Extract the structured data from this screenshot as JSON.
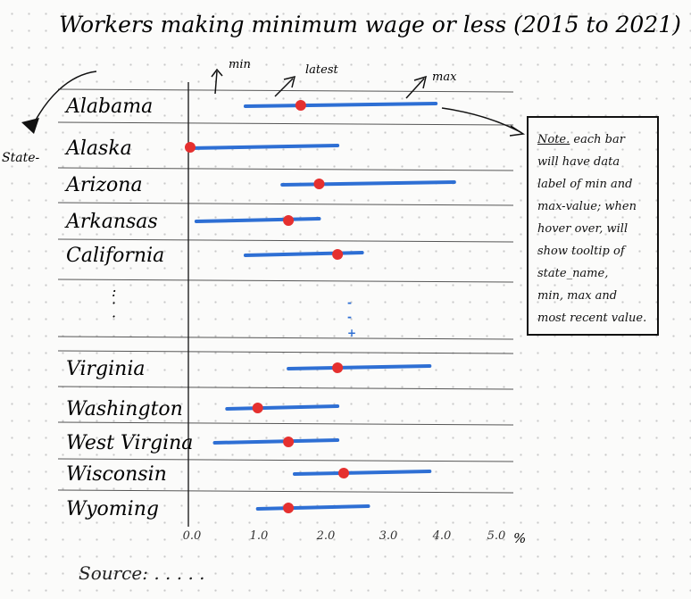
{
  "chart_data": {
    "type": "dumbbell-range",
    "title": "Workers making minimum wage or less (2015 to 2021)",
    "ylabel": "State-",
    "states": [
      {
        "name": "Alabama",
        "min": 0.9,
        "latest": 1.8,
        "max": 4.0
      },
      {
        "name": "Alaska",
        "min": 0.0,
        "latest": 0.0,
        "max": 2.4
      },
      {
        "name": "Arizona",
        "min": 1.5,
        "latest": 2.1,
        "max": 4.3
      },
      {
        "name": "Arkansas",
        "min": 0.1,
        "latest": 1.6,
        "max": 2.1
      },
      {
        "name": "California",
        "min": 0.9,
        "latest": 2.4,
        "max": 2.8
      },
      {
        "name": "Virginia",
        "min": 1.6,
        "latest": 2.4,
        "max": 3.9
      },
      {
        "name": "Washington",
        "min": 0.6,
        "latest": 1.1,
        "max": 2.4
      },
      {
        "name": "West Virgina",
        "min": 0.4,
        "latest": 1.6,
        "max": 2.4
      },
      {
        "name": "Wisconsin",
        "min": 1.7,
        "latest": 2.5,
        "max": 3.9
      },
      {
        "name": "Wyoming",
        "min": 1.1,
        "latest": 1.6,
        "max": 2.9
      }
    ],
    "gap_labels": [
      ":",
      "·",
      "·"
    ],
    "gap_marks": [
      "-",
      "-",
      "+"
    ],
    "xticks": [
      "0.0",
      "1.0",
      "2.0",
      "3.0",
      "4.0",
      "5.0"
    ],
    "xunit": "%",
    "xlim": [
      0,
      5
    ],
    "grid": "horizontal",
    "colors": {
      "bar": "#2e6fd4",
      "latest": "#e5302f",
      "ink": "#111111"
    },
    "annotations": {
      "min": "min",
      "latest": "latest",
      "max": "max"
    }
  },
  "note": {
    "heading": "Note.",
    "lines": [
      "each bar",
      "will have data",
      "label of min and",
      "max-value; when",
      "hover over, will",
      "show tooltip of",
      "state_name,",
      "min, max and",
      "most recent value."
    ]
  },
  "source": {
    "text": "Source: . . . . ."
  }
}
